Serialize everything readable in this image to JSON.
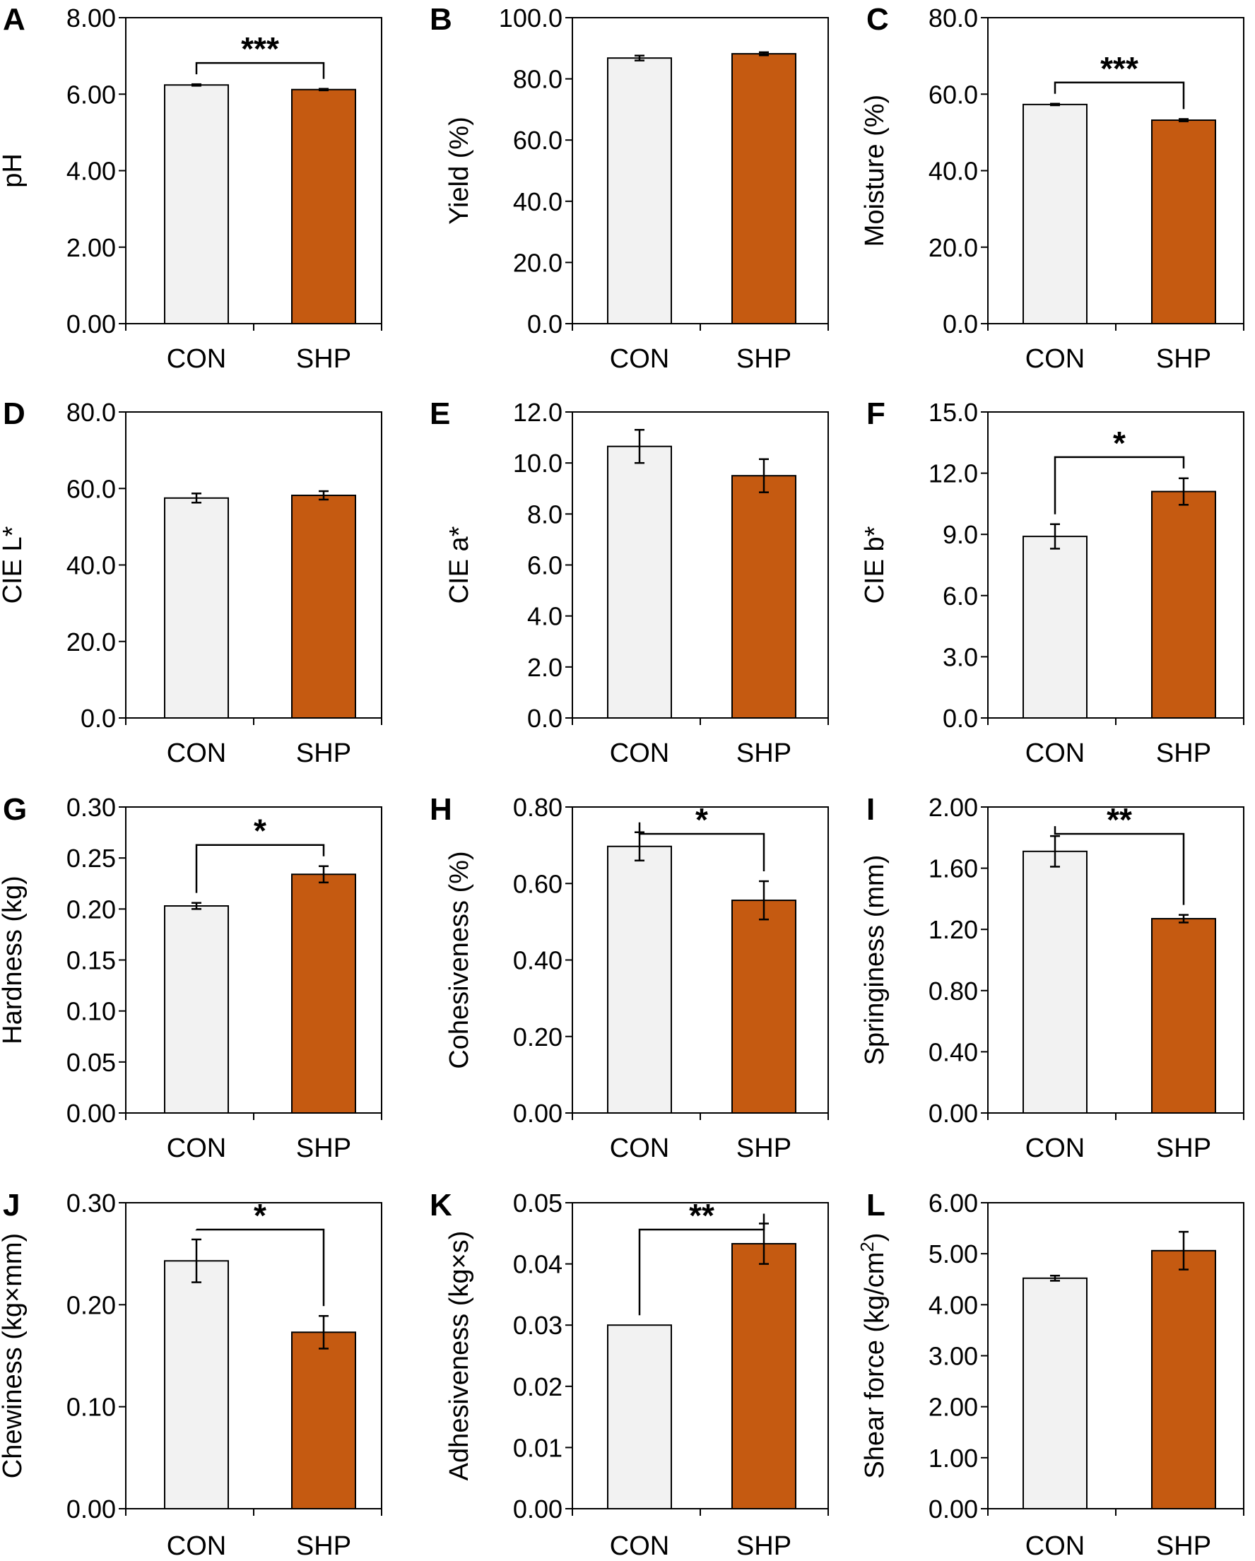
{
  "colors": {
    "con_fill": "#f2f2f2",
    "shp_fill": "#c55a11",
    "stroke": "#000000"
  },
  "chart_data": [
    {
      "type": "bar",
      "panel": "A",
      "ylabel": "pH",
      "categories": [
        "CON",
        "SHP"
      ],
      "ylim": [
        0,
        8
      ],
      "ticks": [
        "0.00",
        "2.00",
        "4.00",
        "6.00",
        "8.00"
      ],
      "values": [
        6.24,
        6.12
      ],
      "errors": [
        0.02,
        0.02
      ],
      "significance": "***"
    },
    {
      "type": "bar",
      "panel": "B",
      "ylabel": "Yield (%)",
      "categories": [
        "CON",
        "SHP"
      ],
      "ylim": [
        0,
        100
      ],
      "ticks": [
        "0.0",
        "20.0",
        "40.0",
        "60.0",
        "80.0",
        "100.0"
      ],
      "values": [
        86.8,
        88.2
      ],
      "errors": [
        0.8,
        0.5
      ],
      "significance": ""
    },
    {
      "type": "bar",
      "panel": "C",
      "ylabel": "Moisture (%)",
      "categories": [
        "CON",
        "SHP"
      ],
      "ylim": [
        0,
        80
      ],
      "ticks": [
        "0.0",
        "20.0",
        "40.0",
        "60.0",
        "80.0"
      ],
      "values": [
        57.3,
        53.2
      ],
      "errors": [
        0.2,
        0.3
      ],
      "significance": "***"
    },
    {
      "type": "bar",
      "panel": "D",
      "ylabel": "CIE L*",
      "categories": [
        "CON",
        "SHP"
      ],
      "ylim": [
        0,
        80
      ],
      "ticks": [
        "0.0",
        "20.0",
        "40.0",
        "60.0",
        "80.0"
      ],
      "values": [
        57.5,
        58.2
      ],
      "errors": [
        1.2,
        1.1
      ],
      "significance": ""
    },
    {
      "type": "bar",
      "panel": "E",
      "ylabel": "CIE a*",
      "categories": [
        "CON",
        "SHP"
      ],
      "ylim": [
        0,
        12
      ],
      "ticks": [
        "0.0",
        "2.0",
        "4.0",
        "6.0",
        "8.0",
        "10.0",
        "12.0"
      ],
      "values": [
        10.65,
        9.5
      ],
      "errors": [
        0.65,
        0.65
      ],
      "significance": ""
    },
    {
      "type": "bar",
      "panel": "F",
      "ylabel": "CIE b*",
      "categories": [
        "CON",
        "SHP"
      ],
      "ylim": [
        0,
        15
      ],
      "ticks": [
        "0.0",
        "3.0",
        "6.0",
        "9.0",
        "12.0",
        "15.0"
      ],
      "values": [
        8.9,
        11.1
      ],
      "errors": [
        0.6,
        0.65
      ],
      "significance": "*"
    },
    {
      "type": "bar",
      "panel": "G",
      "ylabel": "Hardness (kg)",
      "categories": [
        "CON",
        "SHP"
      ],
      "ylim": [
        0,
        0.3
      ],
      "ticks": [
        "0.00",
        "0.05",
        "0.10",
        "0.15",
        "0.20",
        "0.25",
        "0.30"
      ],
      "values": [
        0.203,
        0.234
      ],
      "errors": [
        0.003,
        0.008
      ],
      "significance": "*"
    },
    {
      "type": "bar",
      "panel": "H",
      "ylabel": "Cohesiveness (%)",
      "categories": [
        "CON",
        "SHP"
      ],
      "ylim": [
        0,
        0.8
      ],
      "ticks": [
        "0.00",
        "0.20",
        "0.40",
        "0.60",
        "0.80"
      ],
      "values": [
        0.697,
        0.556
      ],
      "errors": [
        0.037,
        0.05
      ],
      "significance": "*"
    },
    {
      "type": "bar",
      "panel": "I",
      "ylabel": "Springiness (mm)",
      "categories": [
        "CON",
        "SHP"
      ],
      "ylim": [
        0,
        2
      ],
      "ticks": [
        "0.00",
        "0.40",
        "0.80",
        "1.20",
        "1.60",
        "2.00"
      ],
      "values": [
        1.71,
        1.27
      ],
      "errors": [
        0.1,
        0.025
      ],
      "significance": "**"
    },
    {
      "type": "bar",
      "panel": "J",
      "ylabel": "Chewiness (kg×mm)",
      "categories": [
        "CON",
        "SHP"
      ],
      "ylim": [
        0,
        0.3
      ],
      "ticks": [
        "0.00",
        "0.10",
        "0.20",
        "0.30"
      ],
      "values": [
        0.243,
        0.173
      ],
      "errors": [
        0.021,
        0.016
      ],
      "significance": "*"
    },
    {
      "type": "bar",
      "panel": "K",
      "ylabel": "Adhesiveness (kg×s)",
      "categories": [
        "CON",
        "SHP"
      ],
      "ylim": [
        0,
        0.05
      ],
      "ticks": [
        "0.00",
        "0.01",
        "0.02",
        "0.03",
        "0.04",
        "0.05"
      ],
      "values": [
        0.03,
        0.0433
      ],
      "errors": [
        0.0,
        0.0033
      ],
      "significance": "**"
    },
    {
      "type": "bar",
      "panel": "L",
      "ylabel": "Shear force (kg/cm2)",
      "categories": [
        "CON",
        "SHP"
      ],
      "ylim": [
        0,
        6
      ],
      "ticks": [
        "0.00",
        "1.00",
        "2.00",
        "3.00",
        "4.00",
        "5.00",
        "6.00"
      ],
      "values": [
        4.52,
        5.06
      ],
      "errors": [
        0.05,
        0.37
      ],
      "significance": ""
    }
  ]
}
